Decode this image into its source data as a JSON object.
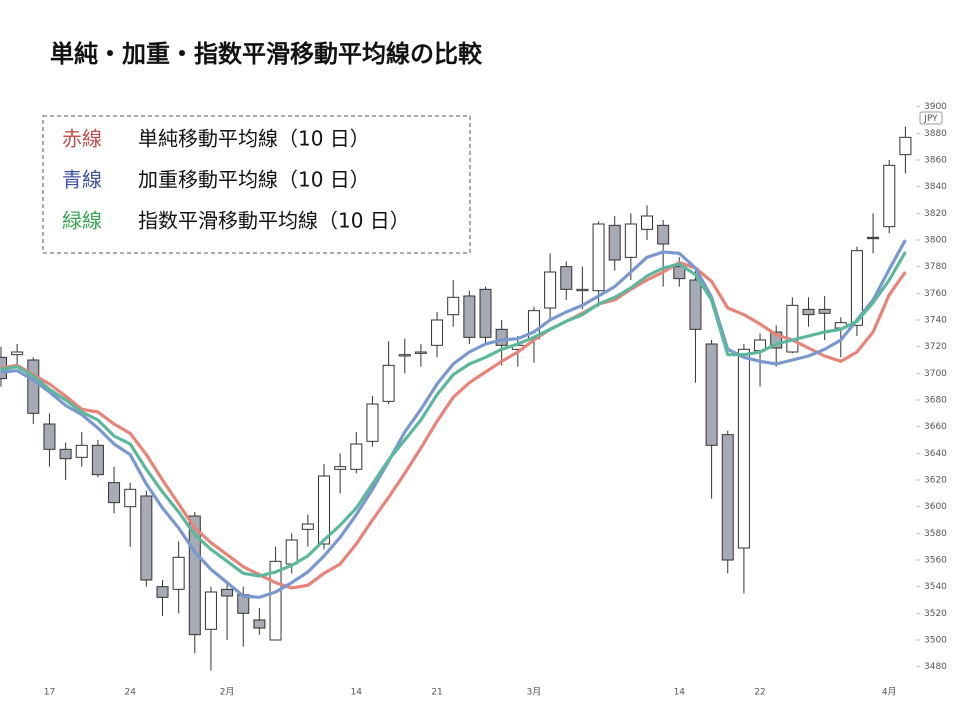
{
  "chart_data": {
    "type": "candlestick",
    "title": "単純・加重・指数平滑移動平均線の比較",
    "currency_label": "JPY",
    "categories": [
      null,
      null,
      null,
      "17",
      null,
      null,
      null,
      null,
      "24",
      null,
      null,
      null,
      null,
      null,
      "2月",
      null,
      null,
      null,
      null,
      null,
      null,
      null,
      "14",
      null,
      null,
      null,
      null,
      "21",
      null,
      null,
      null,
      null,
      null,
      "3月",
      null,
      null,
      null,
      null,
      null,
      null,
      null,
      null,
      "14",
      null,
      null,
      null,
      null,
      "22",
      null,
      null,
      null,
      null,
      null,
      null,
      null,
      "4月",
      null
    ],
    "candles": {
      "open": [
        3712,
        3714,
        3710,
        3662,
        3643,
        3637,
        3646,
        3618,
        3600,
        3608,
        3540,
        3538,
        3593,
        3508,
        3538,
        3534,
        3515,
        3500,
        3557,
        3583,
        3572,
        3628,
        3628,
        3649,
        3679,
        3713,
        3715,
        3721,
        3744,
        3758,
        3763,
        3733,
        3718,
        3726,
        3749,
        3780,
        3762,
        3762,
        3811,
        3787,
        3808,
        3811,
        3780,
        3770,
        3722,
        3654,
        3569,
        3717,
        3731,
        3716,
        3748,
        3748,
        3734,
        3736,
        3802,
        3810,
        3864
      ],
      "close": [
        3696,
        3716,
        3670,
        3643,
        3636,
        3646,
        3624,
        3603,
        3613,
        3545,
        3532,
        3562,
        3504,
        3536,
        3533,
        3520,
        3509,
        3559,
        3575,
        3587,
        3623,
        3630,
        3647,
        3677,
        3706,
        3714,
        3716,
        3740,
        3757,
        3727,
        3727,
        3721,
        3721,
        3747,
        3776,
        3763,
        3763,
        3812,
        3785,
        3812,
        3818,
        3797,
        3771,
        3733,
        3646,
        3560,
        3718,
        3725,
        3719,
        3751,
        3744,
        3745,
        3738,
        3792,
        3801,
        3856,
        3877
      ],
      "high": [
        3720,
        3722,
        3712,
        3670,
        3648,
        3656,
        3650,
        3630,
        3618,
        3612,
        3545,
        3574,
        3596,
        3540,
        3542,
        3540,
        3524,
        3570,
        3580,
        3594,
        3632,
        3640,
        3656,
        3683,
        3724,
        3726,
        3722,
        3746,
        3770,
        3762,
        3765,
        3740,
        3728,
        3750,
        3790,
        3784,
        3780,
        3814,
        3818,
        3820,
        3826,
        3815,
        3787,
        3777,
        3725,
        3657,
        3722,
        3730,
        3736,
        3757,
        3757,
        3758,
        3742,
        3795,
        3820,
        3860,
        3885
      ],
      "low": [
        3690,
        3706,
        3662,
        3630,
        3620,
        3630,
        3622,
        3595,
        3570,
        3540,
        3518,
        3520,
        3490,
        3477,
        3500,
        3495,
        3504,
        3500,
        3550,
        3570,
        3568,
        3610,
        3625,
        3645,
        3677,
        3700,
        3705,
        3712,
        3735,
        3722,
        3722,
        3706,
        3705,
        3708,
        3740,
        3755,
        3748,
        3750,
        3777,
        3770,
        3800,
        3765,
        3765,
        3693,
        3606,
        3550,
        3535,
        3690,
        3705,
        3715,
        3735,
        3725,
        3712,
        3728,
        3790,
        3805,
        3850
      ]
    },
    "up_color": "#ffffff",
    "down_color": "#a7aab4",
    "series": [
      {
        "legend_label": "赤線",
        "label_color": "#c0504d",
        "name": "単純移動平均線（10 日）",
        "color": "#e8837a",
        "values": [
          3704,
          3706,
          3699,
          3692,
          3683,
          3673,
          3671,
          3662,
          3655,
          3639,
          3620,
          3602,
          3584,
          3573,
          3564,
          3555,
          3549,
          3543,
          3539,
          3541,
          3550,
          3557,
          3572,
          3590,
          3607,
          3625,
          3644,
          3664,
          3682,
          3693,
          3701,
          3709,
          3716,
          3725,
          3733,
          3739,
          3745,
          3752,
          3755,
          3763,
          3770,
          3776,
          3783,
          3779,
          3769,
          3749,
          3744,
          3737,
          3729,
          3725,
          3719,
          3713,
          3709,
          3716,
          3731,
          3759,
          3776
        ]
      },
      {
        "legend_label": "青線",
        "label_color": "#3f51a0",
        "name": "加重移動平均線（10 日）",
        "color": "#7b97cf",
        "values": [
          3701,
          3702,
          3695,
          3686,
          3676,
          3669,
          3659,
          3647,
          3639,
          3617,
          3599,
          3584,
          3566,
          3553,
          3543,
          3533,
          3532,
          3536,
          3543,
          3551,
          3563,
          3577,
          3594,
          3613,
          3634,
          3656,
          3673,
          3692,
          3707,
          3716,
          3722,
          3725,
          3726,
          3731,
          3740,
          3746,
          3751,
          3758,
          3765,
          3776,
          3787,
          3791,
          3790,
          3779,
          3757,
          3718,
          3712,
          3709,
          3707,
          3710,
          3713,
          3718,
          3725,
          3740,
          3755,
          3778,
          3800
        ]
      },
      {
        "legend_label": "緑線",
        "label_color": "#3aa655",
        "name": "指数平滑移動平均線（10 日）",
        "color": "#5cb89c",
        "values": [
          3703,
          3705,
          3698,
          3688,
          3680,
          3671,
          3665,
          3653,
          3647,
          3628,
          3611,
          3596,
          3579,
          3568,
          3559,
          3550,
          3548,
          3551,
          3556,
          3563,
          3575,
          3586,
          3599,
          3617,
          3635,
          3650,
          3665,
          3684,
          3699,
          3707,
          3712,
          3718,
          3722,
          3727,
          3733,
          3739,
          3744,
          3752,
          3757,
          3764,
          3773,
          3779,
          3782,
          3774,
          3755,
          3714,
          3714,
          3716,
          3722,
          3725,
          3728,
          3731,
          3733,
          3739,
          3753,
          3770,
          3791
        ]
      }
    ],
    "ylim": [
      3470,
      3905
    ],
    "yticks": [
      3480,
      3500,
      3520,
      3540,
      3560,
      3580,
      3600,
      3620,
      3640,
      3660,
      3680,
      3700,
      3720,
      3740,
      3760,
      3780,
      3800,
      3820,
      3840,
      3860,
      3880,
      3900
    ]
  }
}
